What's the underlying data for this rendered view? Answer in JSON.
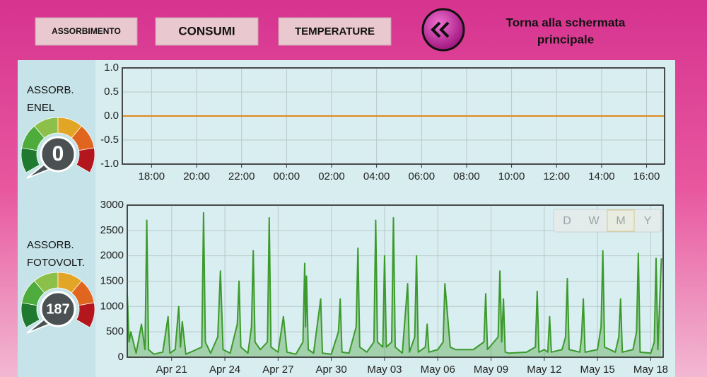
{
  "buttons": [
    "ASSORBIMENTO",
    "CONSUMI",
    "TEMPERATURE"
  ],
  "back_label_lines": [
    "Torna alla schermata",
    "principale"
  ],
  "gauges": [
    {
      "label_lines": [
        "ASSORB.",
        "ENEL"
      ],
      "value": 0
    },
    {
      "label_lines": [
        "ASSORB.",
        "FOTOVOLT."
      ],
      "value": 187
    }
  ],
  "range_buttons": [
    "D",
    "W",
    "M",
    "Y"
  ],
  "chart_data": [
    {
      "type": "line",
      "color": "#e0891c",
      "grid": true,
      "x": [
        16.7,
        40.8
      ],
      "values": [
        0,
        0
      ],
      "xlim": [
        16.7,
        40.8
      ],
      "ylim": [
        -1,
        1
      ],
      "yticks": [
        {
          "value": -1,
          "label": "-1.0"
        },
        {
          "value": -0.5,
          "label": "-0.5"
        },
        {
          "value": 0,
          "label": "0.0"
        },
        {
          "value": 0.5,
          "label": "0.5"
        },
        {
          "value": 1,
          "label": "1.0"
        }
      ],
      "xticks": [
        {
          "value": 18,
          "label": "18:00"
        },
        {
          "value": 20,
          "label": "20:00"
        },
        {
          "value": 22,
          "label": "22:00"
        },
        {
          "value": 24,
          "label": "00:00"
        },
        {
          "value": 26,
          "label": "02:00"
        },
        {
          "value": 28,
          "label": "04:00"
        },
        {
          "value": 30,
          "label": "06:00"
        },
        {
          "value": 32,
          "label": "08:00"
        },
        {
          "value": 34,
          "label": "10:00"
        },
        {
          "value": 36,
          "label": "12:00"
        },
        {
          "value": 38,
          "label": "14:00"
        },
        {
          "value": 40,
          "label": "16:00"
        }
      ]
    },
    {
      "type": "area",
      "color": "#3c9a2c",
      "grid": true,
      "x": [
        18.5,
        18.6,
        18.7,
        19.0,
        19.3,
        19.5,
        19.6,
        19.7,
        20.0,
        20.5,
        20.8,
        20.9,
        21.2,
        21.4,
        21.5,
        21.6,
        21.8,
        22.2,
        22.7,
        22.8,
        22.9,
        23.2,
        23.6,
        23.75,
        23.9,
        24.3,
        24.7,
        24.8,
        24.9,
        25.3,
        25.5,
        25.6,
        25.7,
        26.0,
        26.4,
        26.5,
        26.6,
        27.0,
        27.3,
        27.5,
        28.0,
        28.4,
        28.5,
        28.55,
        28.6,
        28.7,
        29.0,
        29.4,
        29.5,
        30.0,
        30.4,
        30.5,
        30.6,
        31.0,
        31.4,
        31.5,
        31.6,
        32.0,
        32.4,
        32.5,
        32.6,
        32.9,
        33.0,
        33.1,
        33.4,
        33.5,
        33.6,
        34.0,
        34.3,
        34.4,
        34.7,
        34.8,
        34.9,
        35.3,
        35.4,
        35.5,
        36.0,
        36.3,
        36.4,
        36.7,
        37.0,
        38.0,
        38.6,
        38.7,
        38.8,
        39.4,
        39.5,
        39.6,
        39.7,
        39.8,
        40.0,
        41.0,
        41.5,
        41.6,
        41.7,
        42.0,
        42.2,
        42.3,
        42.4,
        43.0,
        43.2,
        43.3,
        43.4,
        44.0,
        44.1,
        44.2,
        44.3,
        45.0,
        45.2,
        45.3,
        45.4,
        46.0,
        46.2,
        46.3,
        46.4,
        47.0,
        47.2,
        47.3,
        47.4,
        48.0,
        48.2,
        48.3,
        48.4,
        48.6
      ],
      "values": [
        1250,
        300,
        500,
        80,
        650,
        150,
        2700,
        150,
        60,
        100,
        800,
        80,
        150,
        1000,
        200,
        700,
        60,
        120,
        200,
        2850,
        300,
        80,
        400,
        1700,
        150,
        80,
        650,
        1500,
        200,
        80,
        600,
        2100,
        300,
        150,
        300,
        2750,
        200,
        100,
        800,
        100,
        60,
        300,
        1850,
        600,
        1600,
        150,
        80,
        1150,
        80,
        60,
        500,
        1150,
        100,
        80,
        600,
        2150,
        200,
        100,
        300,
        2700,
        300,
        200,
        2000,
        200,
        300,
        2750,
        200,
        80,
        1450,
        100,
        400,
        2000,
        100,
        200,
        650,
        100,
        150,
        300,
        1450,
        200,
        150,
        150,
        300,
        1250,
        150,
        400,
        1700,
        300,
        1150,
        100,
        80,
        100,
        200,
        1300,
        100,
        150,
        100,
        800,
        100,
        150,
        400,
        1550,
        150,
        100,
        400,
        1150,
        100,
        150,
        600,
        2100,
        200,
        100,
        400,
        1150,
        100,
        150,
        500,
        2050,
        100,
        80,
        300,
        1950,
        150,
        1950
      ],
      "xlim": [
        18.5,
        48.7
      ],
      "ylim": [
        0,
        3000
      ],
      "yticks": [
        0,
        500,
        1000,
        1500,
        2000,
        2500,
        3000
      ],
      "xticks": [
        {
          "value": 21,
          "label": "Apr 21"
        },
        {
          "value": 24,
          "label": "Apr 24"
        },
        {
          "value": 27,
          "label": "Apr 27"
        },
        {
          "value": 30,
          "label": "Apr 30"
        },
        {
          "value": 33,
          "label": "May 03"
        },
        {
          "value": 36,
          "label": "May 06"
        },
        {
          "value": 39,
          "label": "May 09"
        },
        {
          "value": 42,
          "label": "May 12"
        },
        {
          "value": 45,
          "label": "May 15"
        },
        {
          "value": 48,
          "label": "May 18"
        }
      ]
    }
  ]
}
